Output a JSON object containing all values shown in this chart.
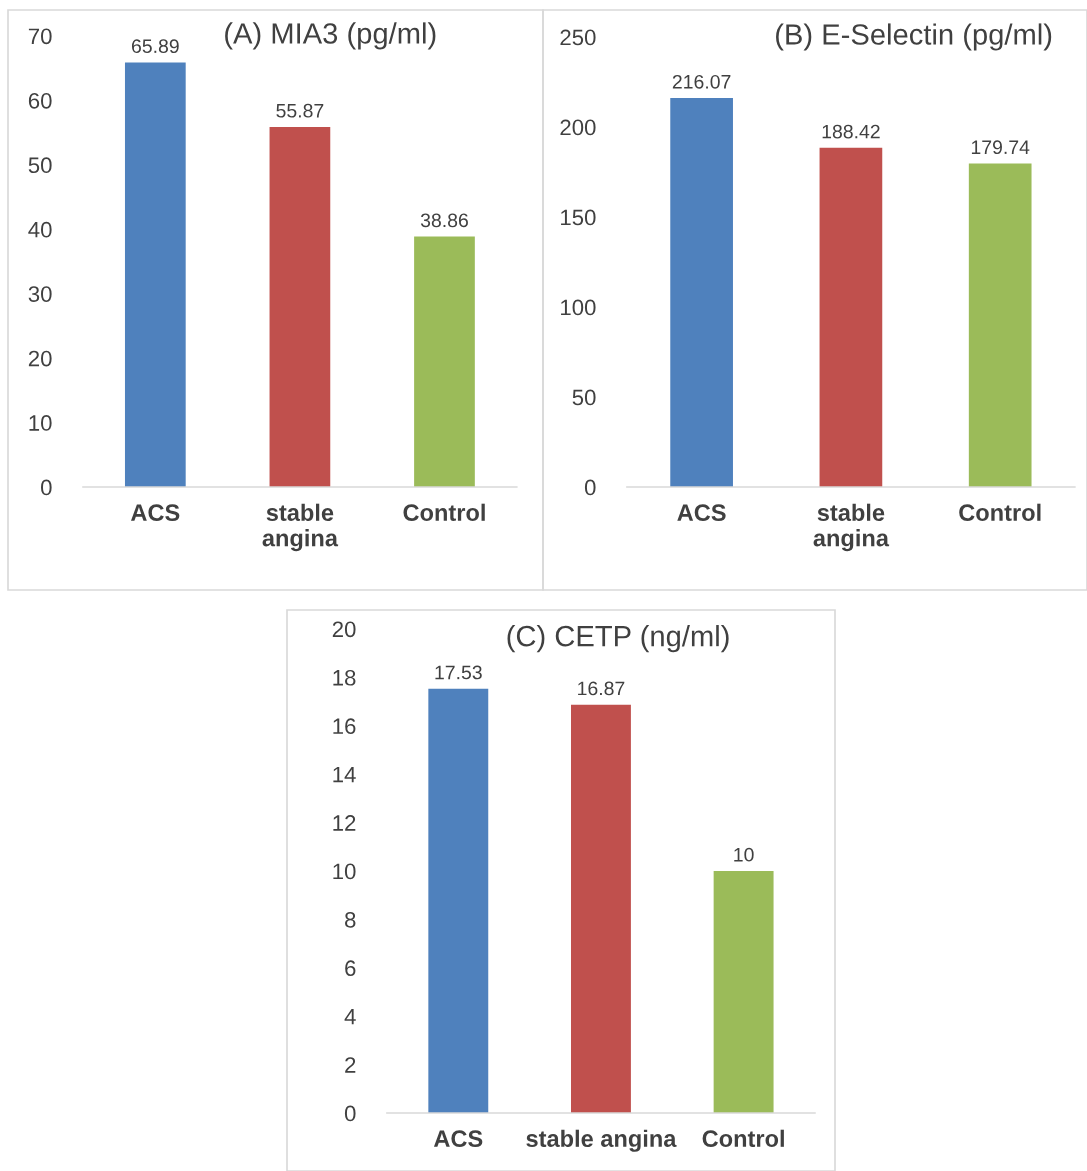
{
  "chart_data": [
    {
      "type": "bar",
      "title": "(A) MIA3 (pg/ml)",
      "categories": [
        "ACS",
        "stable\nangina",
        "Control"
      ],
      "colors": [
        "#4f81bd",
        "#c0504d",
        "#9bbb59"
      ],
      "values": [
        65.89,
        55.87,
        38.86
      ],
      "ylim": [
        0,
        70
      ],
      "yticks": [
        0,
        10,
        20,
        30,
        40,
        50,
        60,
        70
      ],
      "data_labels": true,
      "grid": false,
      "legend": false
    },
    {
      "type": "bar",
      "title": "(B) E-Selectin (pg/ml)",
      "categories": [
        "ACS",
        "stable\nangina",
        "Control"
      ],
      "colors": [
        "#4f81bd",
        "#c0504d",
        "#9bbb59"
      ],
      "values": [
        216.07,
        188.42,
        179.74
      ],
      "ylim": [
        0,
        250
      ],
      "yticks": [
        0,
        50,
        100,
        150,
        200,
        250
      ],
      "data_labels": true,
      "grid": false,
      "legend": false
    },
    {
      "type": "bar",
      "title": "(C) CETP (ng/ml)",
      "categories": [
        "ACS",
        "stable angina",
        "Control"
      ],
      "colors": [
        "#4f81bd",
        "#c0504d",
        "#9bbb59"
      ],
      "values": [
        17.53,
        16.87,
        10
      ],
      "ylim": [
        0,
        20
      ],
      "yticks": [
        0,
        2,
        4,
        6,
        8,
        10,
        12,
        14,
        16,
        18,
        20
      ],
      "data_labels": true,
      "grid": false,
      "legend": false
    }
  ]
}
